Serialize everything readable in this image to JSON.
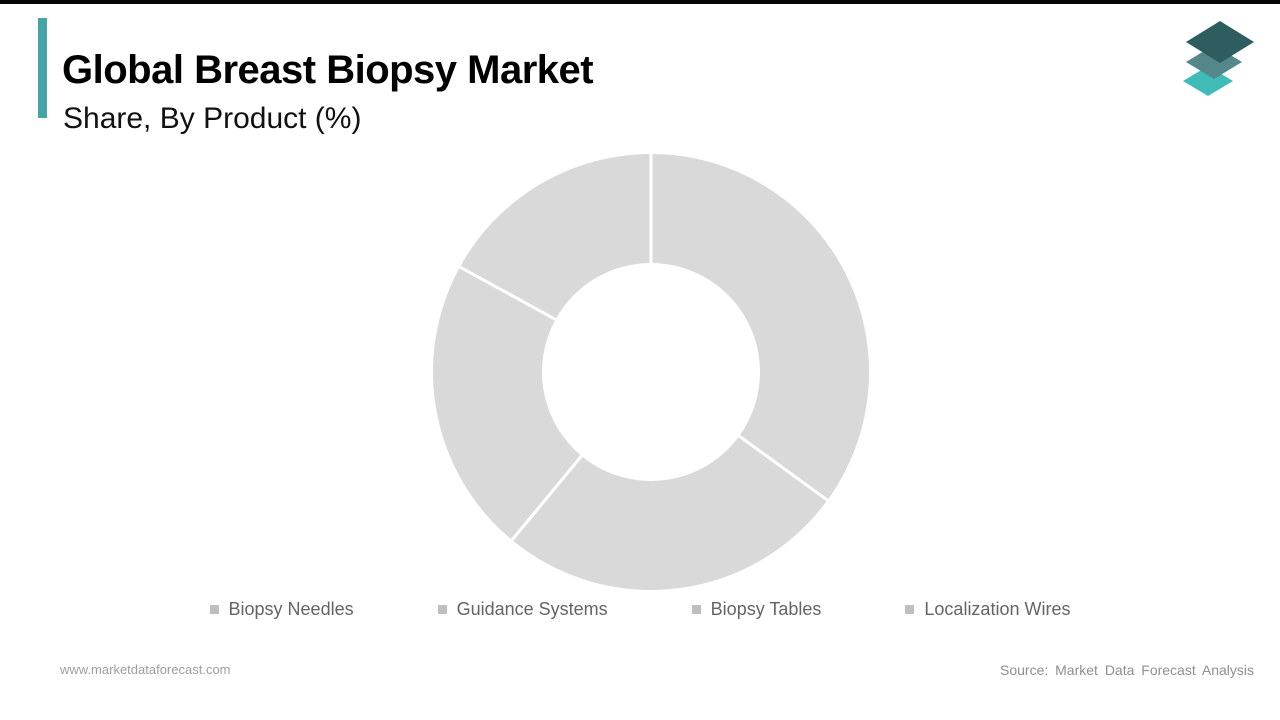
{
  "page": {
    "background": "#ffffff",
    "top_border_color": "#050505"
  },
  "header": {
    "title": "Global Breast Biopsy Market",
    "subtitle": "Share, By Product (%)",
    "accent_color": "#45a5a5"
  },
  "logo": {
    "layer_colors": [
      "#3fbcb8",
      "#54878a",
      "#2e5d60"
    ]
  },
  "chart_data": {
    "type": "pie",
    "variant": "donut",
    "title": "Global Breast Biopsy Market",
    "subtitle": "Share, By Product (%)",
    "labels": [
      "Biopsy Needles",
      "Guidance Systems",
      "Biopsy Tables",
      "Localization Wires"
    ],
    "values": [
      35,
      26,
      22,
      17
    ],
    "start_angle_deg": 0,
    "clockwise": true,
    "outer_radius": 218,
    "inner_radius": 109,
    "slice_color": "#d9d9d9",
    "divider_color": "#ffffff",
    "divider_width": 3,
    "legend_position": "bottom",
    "legend_marker_color": "#bfbfbf",
    "legend_text_color": "#646464"
  },
  "footer": {
    "website": "www.marketdataforecast.com",
    "source": "Source: Market Data Forecast Analysis"
  }
}
